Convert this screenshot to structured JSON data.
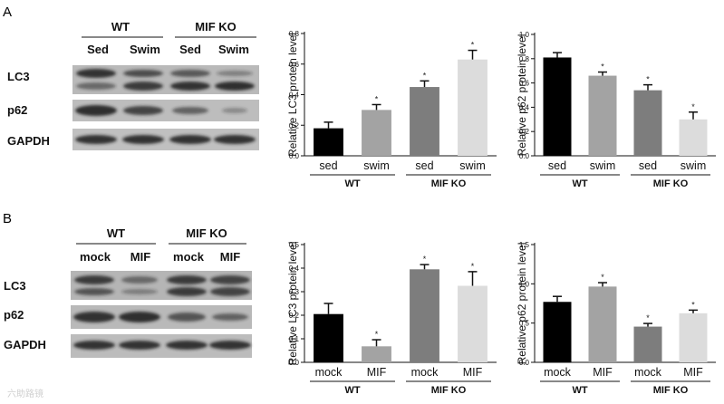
{
  "figure": {
    "watermark": "六助路镜",
    "panels": [
      {
        "id": "A",
        "label": "A",
        "blot": {
          "groups": [
            "WT",
            "MIF KO"
          ],
          "lanes": [
            "Sed",
            "Swim",
            "Sed",
            "Swim"
          ],
          "rows": [
            "LC3",
            "p62",
            "GAPDH"
          ]
        }
      },
      {
        "id": "B",
        "label": "B",
        "blot": {
          "groups": [
            "WT",
            "MIF KO"
          ],
          "lanes": [
            "mock",
            "MIF",
            "mock",
            "MIF"
          ],
          "rows": [
            "LC3",
            "p62",
            "GAPDH"
          ]
        }
      }
    ]
  },
  "chart_data": [
    {
      "id": "A-LC3",
      "type": "bar",
      "title": "",
      "ylabel": "Relative LC3 protein level",
      "ylim": [
        0,
        0.8
      ],
      "yticks": [
        "0.0",
        "0.2",
        "0.4",
        "0.6",
        "0.8"
      ],
      "categories": [
        "sed",
        "swim",
        "sed",
        "swim"
      ],
      "groups": [
        "WT",
        "MIF KO"
      ],
      "values": [
        0.18,
        0.3,
        0.45,
        0.63
      ],
      "errors": [
        0.04,
        0.035,
        0.04,
        0.06
      ],
      "significance": [
        "",
        "*",
        "*",
        "*"
      ],
      "colors": [
        "#000000",
        "#a3a3a3",
        "#7d7d7d",
        "#dcdcdc"
      ]
    },
    {
      "id": "A-p62",
      "type": "bar",
      "title": "",
      "ylabel": "Relative p62 protein level",
      "ylim": [
        0,
        1.0
      ],
      "yticks": [
        "0.0",
        "0.2",
        "0.4",
        "0.6",
        "0.8",
        "1.0"
      ],
      "categories": [
        "sed",
        "swim",
        "sed",
        "swim"
      ],
      "groups": [
        "WT",
        "MIF KO"
      ],
      "values": [
        0.81,
        0.66,
        0.54,
        0.3
      ],
      "errors": [
        0.04,
        0.03,
        0.045,
        0.06
      ],
      "significance": [
        "",
        "*",
        "*",
        "*"
      ],
      "colors": [
        "#000000",
        "#a3a3a3",
        "#7d7d7d",
        "#dcdcdc"
      ]
    },
    {
      "id": "B-LC3",
      "type": "bar",
      "title": "",
      "ylabel": "Relative LC3 protein level",
      "ylim": [
        0,
        0.5
      ],
      "yticks": [
        "0.0",
        "0.1",
        "0.2",
        "0.3",
        "0.4",
        "0.5"
      ],
      "categories": [
        "mock",
        "MIF",
        "mock",
        "MIF"
      ],
      "groups": [
        "WT",
        "MIF KO"
      ],
      "values": [
        0.205,
        0.068,
        0.395,
        0.325
      ],
      "errors": [
        0.045,
        0.028,
        0.02,
        0.06
      ],
      "significance": [
        "",
        "*",
        "*",
        "*"
      ],
      "colors": [
        "#000000",
        "#a3a3a3",
        "#7d7d7d",
        "#dcdcdc"
      ]
    },
    {
      "id": "B-p62",
      "type": "bar",
      "title": "",
      "ylabel": "Relative p62 protein level",
      "ylim": [
        0,
        1.5
      ],
      "yticks": [
        "0.0",
        "0.5",
        "1.0",
        "1.5"
      ],
      "categories": [
        "mock",
        "MIF",
        "mock",
        "MIF"
      ],
      "groups": [
        "WT",
        "MIF KO"
      ],
      "values": [
        0.77,
        0.965,
        0.455,
        0.625
      ],
      "errors": [
        0.07,
        0.05,
        0.04,
        0.04
      ],
      "significance": [
        "",
        "*",
        "*",
        "*"
      ],
      "colors": [
        "#000000",
        "#a3a3a3",
        "#7d7d7d",
        "#dcdcdc"
      ]
    }
  ]
}
